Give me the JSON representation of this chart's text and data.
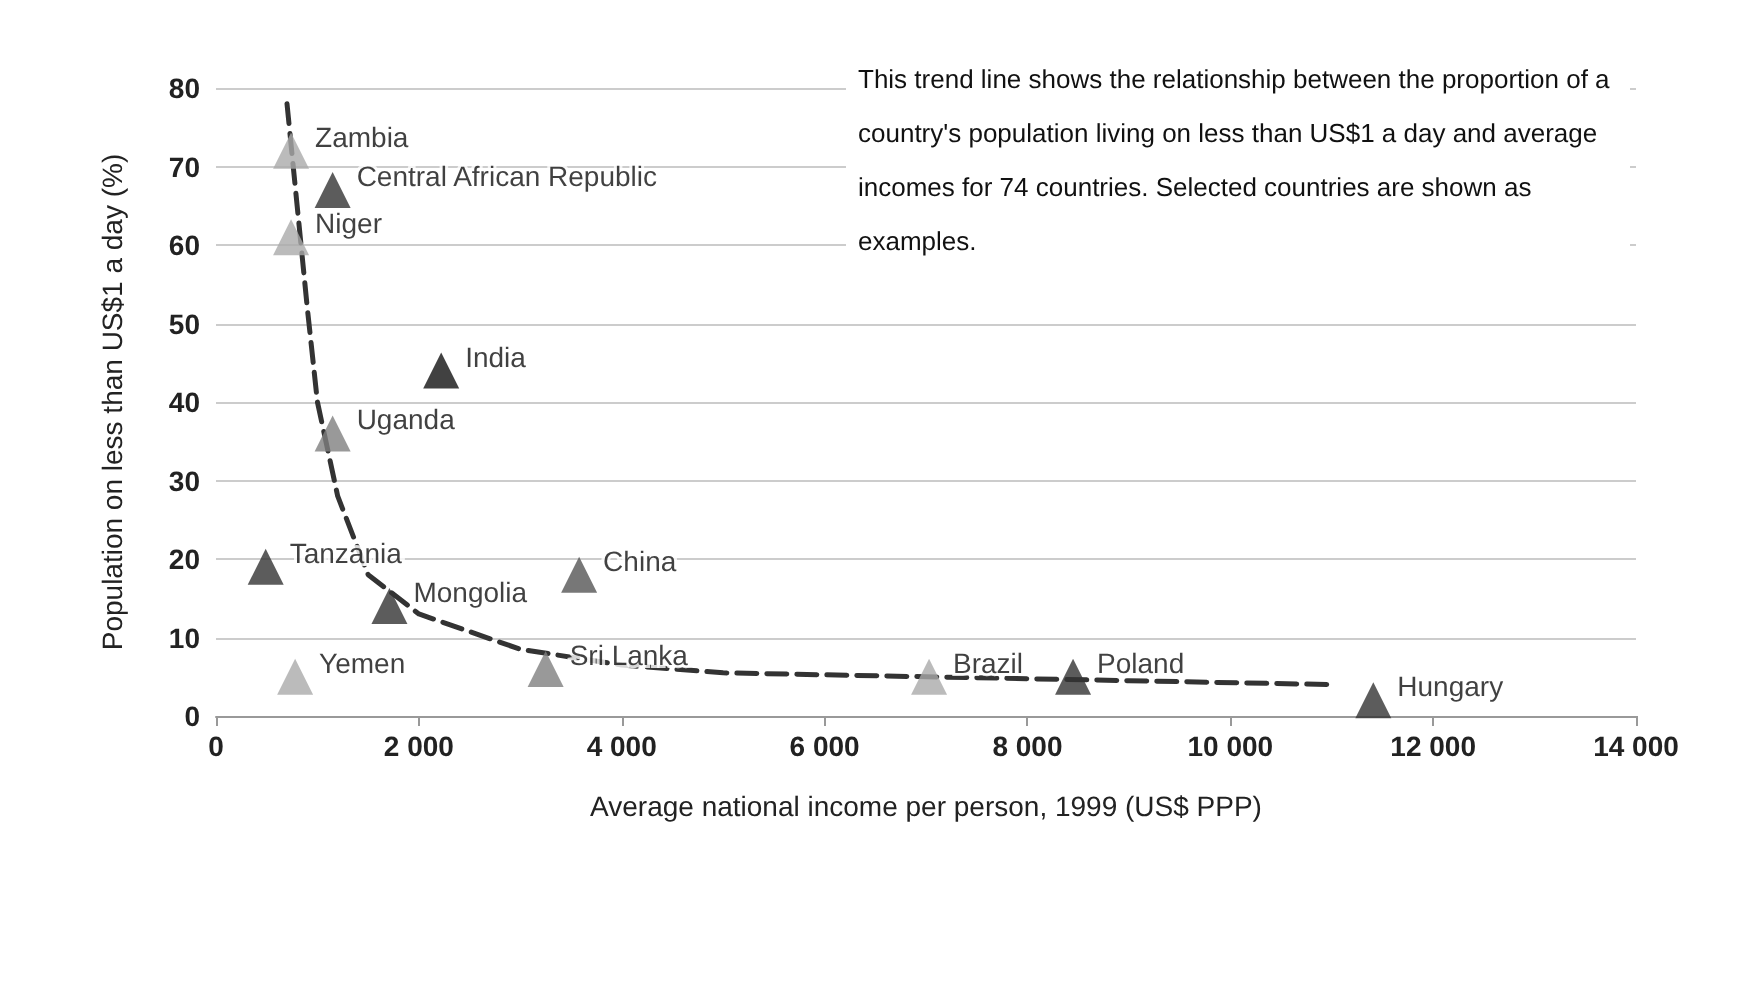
{
  "chart_data": {
    "type": "scatter",
    "xlabel": "Average national income per person, 1999 (US$ PPP)",
    "ylabel": "Population on less than US$1 a day (%)",
    "xlim": [
      0,
      14000
    ],
    "xticks": [
      0,
      {
        "value": 2000,
        "label": "2 000"
      },
      {
        "value": 4000,
        "label": "4 000"
      },
      {
        "value": 6000,
        "label": "6 000"
      },
      {
        "value": 8000,
        "label": "8 000"
      },
      {
        "value": 10000,
        "label": "10 000"
      },
      {
        "value": 12000,
        "label": "12 000"
      },
      {
        "value": 14000,
        "label": "14 000"
      }
    ],
    "ylim": [
      0,
      80
    ],
    "yticks": [
      0,
      10,
      20,
      30,
      40,
      50,
      60,
      70,
      80
    ],
    "grid": "y",
    "marker": "triangle",
    "series": [
      {
        "x": [
          740,
          1150,
          740,
          2220,
          1150,
          490,
          1710,
          3580,
          780,
          3250,
          7030,
          8450,
          11410
        ],
        "values": [
          72,
          67,
          61,
          44,
          36,
          19,
          14,
          18,
          5,
          6,
          5,
          5,
          2
        ],
        "colors": [
          "#aaaaaa",
          "#333333",
          "#aaaaaa",
          "#111111",
          "#808080",
          "#333333",
          "#333333",
          "#555555",
          "#aaaaaa",
          "#808080",
          "#aaaaaa",
          "#333333",
          "#333333"
        ]
      },
      {
        "type": "line",
        "color": "#333333",
        "marker": "none",
        "line_style": "dashed",
        "x": [
          700,
          800,
          900,
          1000,
          1200,
          1500,
          2000,
          3000,
          4000,
          5000,
          7000,
          9000,
          11000
        ],
        "values": [
          78,
          65,
          52,
          40,
          28,
          18,
          13,
          8.5,
          6.5,
          5.5,
          5,
          4.5,
          4
        ]
      }
    ],
    "annotations": [
      "This trend line shows the relationship between the proportion of a country's population living on less than US$1 a day and average incomes for 74 countries. Selected countries are shown as examples.",
      {
        "text": "Zambia",
        "x": 740,
        "y": 72
      },
      {
        "text": "Central African Republic",
        "x": 1150,
        "y": 67
      },
      {
        "text": "Niger",
        "x": 740,
        "y": 61
      },
      {
        "text": "India",
        "x": 2220,
        "y": 44
      },
      {
        "text": "Uganda",
        "x": 1150,
        "y": 36
      },
      {
        "text": "Tanzania",
        "x": 490,
        "y": 19
      },
      {
        "text": "Mongolia",
        "x": 1710,
        "y": 14
      },
      {
        "text": "China",
        "x": 3580,
        "y": 18
      },
      {
        "text": "Yemen",
        "x": 780,
        "y": 5
      },
      {
        "text": "Sri Lanka",
        "x": 3250,
        "y": 6
      },
      {
        "text": "Brazil",
        "x": 7030,
        "y": 5
      },
      {
        "text": "Poland",
        "x": 8450,
        "y": 5
      },
      {
        "text": "Hungary",
        "x": 11410,
        "y": 2
      }
    ]
  }
}
